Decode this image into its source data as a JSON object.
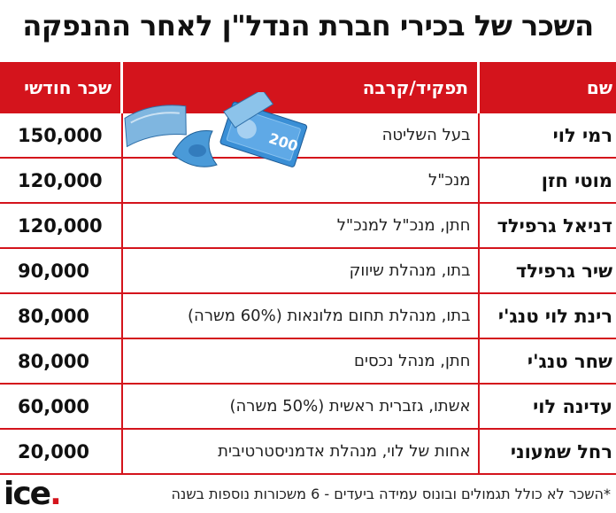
{
  "title": "השכר של בכירי חברת הנדל\"ן לאחר ההנפקה",
  "table": {
    "headers": {
      "name": "שם",
      "role": "תפקיד/קרבה",
      "salary": "שכר חודשי"
    },
    "rows": [
      {
        "name": "רמי לוי",
        "role": "בעל השליטה",
        "salary": "150,000"
      },
      {
        "name": "מוטי חזן",
        "role": "מנכ\"ל",
        "salary": "120,000"
      },
      {
        "name": "דניאל גרפילד",
        "role": "חתן, מנכ\"ל למנכ\"ל",
        "salary": "120,000"
      },
      {
        "name": "שיר גרפילד",
        "role": "בתו, מנהלת שיווק",
        "salary": "90,000"
      },
      {
        "name": "רינת לוי טנג'י",
        "role": "בתו, מנהלת תחום מלונאות (60% משרה)",
        "salary": "80,000"
      },
      {
        "name": "שחר טנג'י",
        "role": "חתן, מנהל נכסים",
        "salary": "80,000"
      },
      {
        "name": "עדינה לוי",
        "role": "אשתו, גזברית ראשית (50% משרה)",
        "salary": "60,000"
      },
      {
        "name": "רחל שמעוני",
        "role": "אחות של לוי, מנהלת אדמניסטרטיבית",
        "salary": "20,000"
      }
    ]
  },
  "footnote": "*השכר לא כולל תגמולים ובונוס עמידה ביעדים - 6 משכורות נוספות בשנה",
  "logo": {
    "text": "ice",
    "dot": "."
  },
  "banknote_text": "200",
  "colors": {
    "accent": "#d4141c",
    "banknote": "#3a8fd6"
  },
  "icons": {
    "illustration": "banknotes-illustration"
  }
}
